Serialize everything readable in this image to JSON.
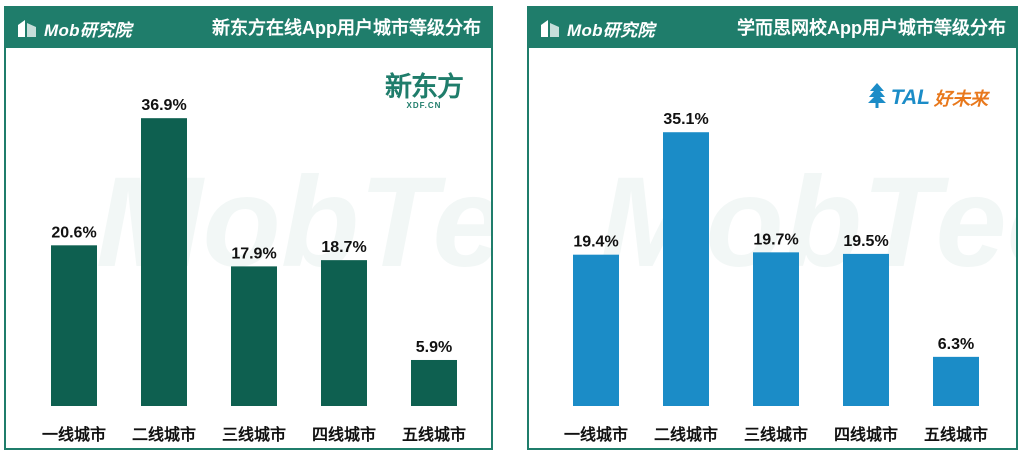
{
  "brand_name": "Mob研究院",
  "watermark_text": "MobTech",
  "colors": {
    "header": "#1f7d6b",
    "left_bar": "#0e6050",
    "right_bar": "#1b8cc7"
  },
  "left": {
    "title": "新东方在线App用户城市等级分布",
    "logo_cn": "新东方",
    "logo_en": "XDF.CN"
  },
  "right": {
    "title": "学而思网校App用户城市等级分布",
    "logo_en": "TAL",
    "logo_cn": "好未来"
  },
  "chart_data": [
    {
      "type": "bar",
      "title": "新东方在线App用户城市等级分布",
      "categories": [
        "一线城市",
        "二线城市",
        "三线城市",
        "四线城市",
        "五线城市"
      ],
      "values": [
        20.6,
        36.9,
        17.9,
        18.7,
        5.9
      ],
      "value_labels": [
        "20.6%",
        "36.9%",
        "17.9%",
        "18.7%",
        "5.9%"
      ],
      "unit": "%",
      "ylim": [
        0,
        40
      ],
      "grid": false,
      "color": "#0e6050"
    },
    {
      "type": "bar",
      "title": "学而思网校App用户城市等级分布",
      "categories": [
        "一线城市",
        "二线城市",
        "三线城市",
        "四线城市",
        "五线城市"
      ],
      "values": [
        19.4,
        35.1,
        19.7,
        19.5,
        6.3
      ],
      "value_labels": [
        "19.4%",
        "35.1%",
        "19.7%",
        "19.5%",
        "6.3%"
      ],
      "unit": "%",
      "ylim": [
        0,
        40
      ],
      "grid": false,
      "color": "#1b8cc7"
    }
  ]
}
